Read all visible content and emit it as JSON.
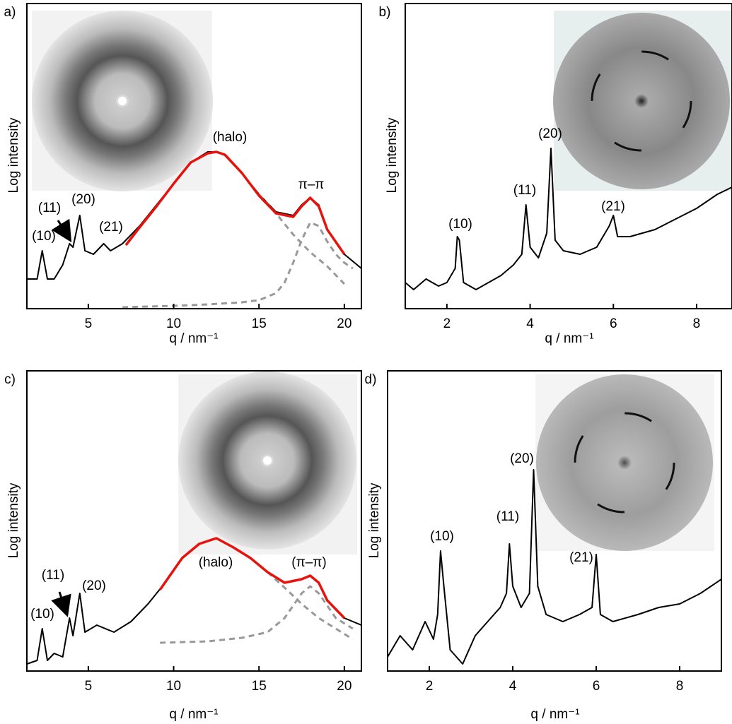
{
  "chart_data": [
    {
      "type": "line",
      "label": "a)",
      "xlabel": "q / nm⁻¹",
      "ylabel": "Log intensity",
      "xlim": [
        1.4,
        21
      ],
      "xticks": [
        5,
        10,
        15,
        20
      ],
      "ylim": [
        0,
        432
      ],
      "series": [
        {
          "color": "#000000",
          "x": [
            1.4,
            2.0,
            2.3,
            2.6,
            3.0,
            3.5,
            3.9,
            4.1,
            4.5,
            4.8,
            5.3,
            5.9,
            6.3,
            7,
            8,
            9,
            10,
            11,
            12,
            12.5,
            13,
            14,
            15,
            16,
            17,
            17.5,
            18,
            18.5,
            19,
            20,
            21
          ],
          "values": [
            42,
            42,
            82,
            42,
            42,
            62,
            92,
            87,
            132,
            82,
            77,
            92,
            82,
            92,
            117,
            147,
            177,
            207,
            222,
            222,
            217,
            192,
            162,
            137,
            132,
            147,
            157,
            147,
            112,
            77,
            57
          ]
        },
        {
          "color": "#999999",
          "dashed": true,
          "x": [
            15,
            16,
            17,
            18,
            19,
            20
          ],
          "values": [
            162,
            135,
            105,
            80,
            60,
            35
          ]
        },
        {
          "color": "#999999",
          "dashed": true,
          "x": [
            7,
            10,
            12,
            14,
            15,
            16,
            16.5,
            17,
            17.5,
            18,
            18.5,
            19,
            19.5,
            20,
            20.5
          ],
          "values": [
            2,
            4,
            6,
            9,
            12,
            22,
            37,
            65,
            97,
            122,
            117,
            95,
            77,
            65,
            57
          ]
        },
        {
          "color": "#e8120c",
          "x": [
            7.2,
            8,
            9,
            10,
            11,
            12,
            12.5,
            13,
            14,
            15,
            16,
            17,
            17.5,
            18,
            18.5,
            19,
            20
          ],
          "values": [
            90,
            115,
            145,
            177,
            207,
            220,
            222,
            218,
            192,
            160,
            135,
            130,
            145,
            157,
            145,
            112,
            77
          ]
        }
      ],
      "annotations": [
        "(10)",
        "(11)",
        "(20)",
        "(21)",
        "(halo)",
        "π–π"
      ]
    },
    {
      "type": "line",
      "label": "b)",
      "xlabel": "q / nm⁻¹",
      "ylabel": "Log intensity",
      "xlim": [
        1,
        8.85
      ],
      "xticks": [
        2,
        4,
        6,
        8
      ],
      "ylim": [
        0,
        432
      ],
      "series": [
        {
          "color": "#000000",
          "x": [
            1,
            1.2,
            1.5,
            1.8,
            2.0,
            2.2,
            2.25,
            2.3,
            2.4,
            2.7,
            3.0,
            3.3,
            3.6,
            3.8,
            3.9,
            4.0,
            4.2,
            4.4,
            4.5,
            4.6,
            4.8,
            5.2,
            5.6,
            5.9,
            6.0,
            6.1,
            6.4,
            7.0,
            7.5,
            8.0,
            8.5,
            8.85
          ],
          "values": [
            37,
            27,
            42,
            32,
            37,
            57,
            102,
            97,
            37,
            27,
            37,
            47,
            62,
            77,
            147,
            87,
            72,
            107,
            227,
            97,
            82,
            77,
            87,
            117,
            132,
            102,
            102,
            112,
            127,
            142,
            162,
            172
          ]
        }
      ],
      "annotations": [
        "(10)",
        "(11)",
        "(20)",
        "(21)"
      ]
    },
    {
      "type": "line",
      "label": "c)",
      "xlabel": "q / nm⁻¹",
      "ylabel": "Log intensity",
      "xlim": [
        1.4,
        21
      ],
      "xticks": [
        5,
        10,
        15,
        20
      ],
      "ylim": [
        0,
        425
      ],
      "series": [
        {
          "color": "#000000",
          "x": [
            1.4,
            2.0,
            2.3,
            2.6,
            3.0,
            3.5,
            3.9,
            4.1,
            4.5,
            4.8,
            5.5,
            6.5,
            7.5,
            8.5,
            9.5,
            10.5,
            11.5,
            12.5,
            13.5,
            14.5,
            15.5,
            16.5,
            17.5,
            18,
            18.5,
            19,
            20,
            21
          ],
          "values": [
            10,
            15,
            60,
            15,
            25,
            20,
            75,
            50,
            110,
            55,
            65,
            55,
            70,
            95,
            125,
            160,
            180,
            188,
            175,
            160,
            140,
            125,
            130,
            135,
            125,
            100,
            75,
            65
          ]
        },
        {
          "color": "#999999",
          "dashed": true,
          "x": [
            15.5,
            16.5,
            17.5,
            18.5,
            19.5,
            20.5
          ],
          "values": [
            140,
            118,
            95,
            75,
            60,
            45
          ]
        },
        {
          "color": "#999999",
          "dashed": true,
          "x": [
            9.2,
            12,
            14,
            15.5,
            16.5,
            17.5,
            18,
            18.5,
            19.5,
            20.5
          ],
          "values": [
            40,
            42,
            47,
            55,
            75,
            110,
            120,
            110,
            75,
            60
          ]
        },
        {
          "color": "#e8120c",
          "x": [
            9.2,
            10.5,
            11.5,
            12.5,
            13.5,
            14.5,
            15.5,
            16.5,
            17.5,
            18,
            18.5,
            19,
            20
          ],
          "values": [
            115,
            160,
            180,
            188,
            175,
            160,
            140,
            125,
            130,
            135,
            125,
            100,
            75
          ]
        }
      ],
      "annotations": [
        "(10)",
        "(11)",
        "(20)",
        "(halo)",
        "(π–π)"
      ]
    },
    {
      "type": "line",
      "label": "d)",
      "xlabel": "q / nm⁻¹",
      "ylabel": "Log intensity",
      "xlim": [
        1,
        9
      ],
      "xticks": [
        2,
        4,
        6,
        8
      ],
      "ylim": [
        0,
        425
      ],
      "series": [
        {
          "color": "#000000",
          "x": [
            1,
            1.3,
            1.6,
            1.9,
            2.1,
            2.2,
            2.27,
            2.35,
            2.5,
            2.8,
            3.1,
            3.4,
            3.7,
            3.85,
            3.92,
            4.0,
            4.2,
            4.4,
            4.5,
            4.6,
            4.8,
            5.2,
            5.6,
            5.9,
            6.0,
            6.1,
            6.4,
            7.0,
            7.5,
            8.0,
            8.5,
            9.0
          ],
          "values": [
            20,
            50,
            30,
            70,
            45,
            80,
            170,
            120,
            30,
            10,
            50,
            70,
            90,
            110,
            180,
            120,
            90,
            110,
            285,
            120,
            80,
            70,
            80,
            90,
            165,
            80,
            70,
            80,
            90,
            95,
            110,
            130
          ]
        }
      ],
      "annotations": [
        "(10)",
        "(11)",
        "(20)",
        "(21)"
      ]
    }
  ]
}
